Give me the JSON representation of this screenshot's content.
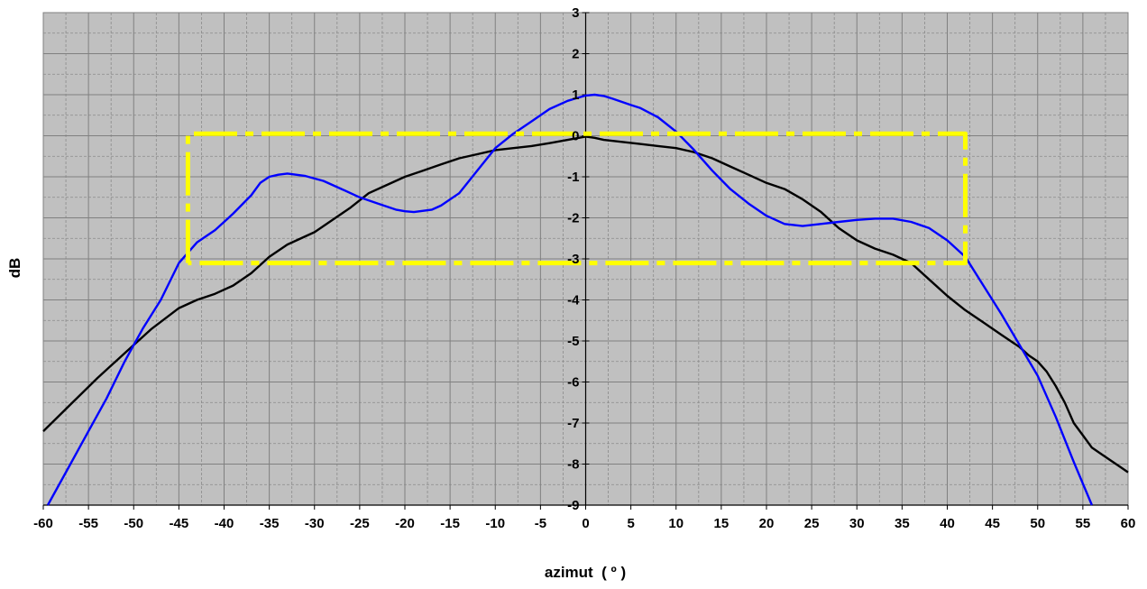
{
  "chart_data": {
    "type": "line",
    "title": "",
    "xlabel": "azimut  ( º )",
    "ylabel": "dB",
    "xlim": [
      -60,
      60
    ],
    "ylim": [
      -9,
      3
    ],
    "x_ticks": [
      -60,
      -55,
      -50,
      -45,
      -40,
      -35,
      -30,
      -25,
      -20,
      -15,
      -10,
      -5,
      0,
      5,
      10,
      15,
      20,
      25,
      30,
      35,
      40,
      45,
      50,
      55,
      60
    ],
    "y_ticks": [
      -9,
      -8,
      -7,
      -6,
      -5,
      -4,
      -3,
      -2,
      -1,
      0,
      1,
      2,
      3
    ],
    "x_minor_grid_step": 2.5,
    "y_minor_grid_step": 0.5,
    "grid": true,
    "plot_background": "#c0c0c0",
    "legend": "none",
    "series": [
      {
        "color": "#000000",
        "points": [
          [
            -60,
            -7.2
          ],
          [
            -57,
            -6.55
          ],
          [
            -54,
            -5.9
          ],
          [
            -51,
            -5.3
          ],
          [
            -48,
            -4.7
          ],
          [
            -45,
            -4.2
          ],
          [
            -43,
            -4.0
          ],
          [
            -41,
            -3.85
          ],
          [
            -39,
            -3.65
          ],
          [
            -37,
            -3.35
          ],
          [
            -35,
            -2.95
          ],
          [
            -33,
            -2.65
          ],
          [
            -30,
            -2.35
          ],
          [
            -28,
            -2.05
          ],
          [
            -26,
            -1.75
          ],
          [
            -24,
            -1.4
          ],
          [
            -22,
            -1.2
          ],
          [
            -20,
            -1.0
          ],
          [
            -18,
            -0.85
          ],
          [
            -16,
            -0.7
          ],
          [
            -14,
            -0.55
          ],
          [
            -12,
            -0.45
          ],
          [
            -10,
            -0.35
          ],
          [
            -8,
            -0.3
          ],
          [
            -6,
            -0.25
          ],
          [
            -4,
            -0.18
          ],
          [
            -2,
            -0.1
          ],
          [
            0,
            -0.02
          ],
          [
            1,
            -0.05
          ],
          [
            2,
            -0.1
          ],
          [
            4,
            -0.15
          ],
          [
            6,
            -0.2
          ],
          [
            8,
            -0.25
          ],
          [
            10,
            -0.3
          ],
          [
            12,
            -0.4
          ],
          [
            14,
            -0.55
          ],
          [
            16,
            -0.75
          ],
          [
            18,
            -0.95
          ],
          [
            20,
            -1.15
          ],
          [
            22,
            -1.3
          ],
          [
            24,
            -1.55
          ],
          [
            26,
            -1.85
          ],
          [
            28,
            -2.25
          ],
          [
            30,
            -2.55
          ],
          [
            32,
            -2.75
          ],
          [
            34,
            -2.9
          ],
          [
            36,
            -3.1
          ],
          [
            38,
            -3.5
          ],
          [
            40,
            -3.9
          ],
          [
            42,
            -4.25
          ],
          [
            44,
            -4.55
          ],
          [
            46,
            -4.85
          ],
          [
            48,
            -5.15
          ],
          [
            49,
            -5.35
          ],
          [
            50,
            -5.5
          ],
          [
            51,
            -5.75
          ],
          [
            52,
            -6.1
          ],
          [
            53,
            -6.5
          ],
          [
            54,
            -7.0
          ],
          [
            55,
            -7.3
          ],
          [
            56,
            -7.6
          ],
          [
            57,
            -7.75
          ],
          [
            58,
            -7.9
          ],
          [
            59,
            -8.05
          ],
          [
            60,
            -8.2
          ]
        ]
      },
      {
        "color": "#0000ff",
        "points": [
          [
            -59.5,
            -9.0
          ],
          [
            -57,
            -8.0
          ],
          [
            -55,
            -7.2
          ],
          [
            -53,
            -6.4
          ],
          [
            -51,
            -5.5
          ],
          [
            -49,
            -4.7
          ],
          [
            -47,
            -4.0
          ],
          [
            -45,
            -3.1
          ],
          [
            -43,
            -2.6
          ],
          [
            -41,
            -2.3
          ],
          [
            -39,
            -1.9
          ],
          [
            -37,
            -1.45
          ],
          [
            -36,
            -1.15
          ],
          [
            -35,
            -1.0
          ],
          [
            -34,
            -0.95
          ],
          [
            -33,
            -0.92
          ],
          [
            -31,
            -0.98
          ],
          [
            -29,
            -1.1
          ],
          [
            -27,
            -1.3
          ],
          [
            -25,
            -1.5
          ],
          [
            -23,
            -1.65
          ],
          [
            -21,
            -1.8
          ],
          [
            -20,
            -1.84
          ],
          [
            -19,
            -1.86
          ],
          [
            -17,
            -1.8
          ],
          [
            -16,
            -1.7
          ],
          [
            -14,
            -1.4
          ],
          [
            -12,
            -0.85
          ],
          [
            -10,
            -0.3
          ],
          [
            -8,
            0.05
          ],
          [
            -6,
            0.35
          ],
          [
            -4,
            0.65
          ],
          [
            -2,
            0.85
          ],
          [
            0,
            0.98
          ],
          [
            1,
            1.0
          ],
          [
            2,
            0.97
          ],
          [
            3,
            0.9
          ],
          [
            5,
            0.75
          ],
          [
            6,
            0.68
          ],
          [
            8,
            0.45
          ],
          [
            10,
            0.1
          ],
          [
            12,
            -0.35
          ],
          [
            14,
            -0.85
          ],
          [
            16,
            -1.3
          ],
          [
            18,
            -1.65
          ],
          [
            20,
            -1.95
          ],
          [
            22,
            -2.15
          ],
          [
            24,
            -2.2
          ],
          [
            26,
            -2.15
          ],
          [
            28,
            -2.1
          ],
          [
            30,
            -2.05
          ],
          [
            32,
            -2.02
          ],
          [
            34,
            -2.02
          ],
          [
            36,
            -2.1
          ],
          [
            38,
            -2.25
          ],
          [
            40,
            -2.55
          ],
          [
            42,
            -2.95
          ],
          [
            44,
            -3.65
          ],
          [
            46,
            -4.35
          ],
          [
            48,
            -5.1
          ],
          [
            50,
            -5.85
          ],
          [
            52,
            -6.85
          ],
          [
            54,
            -7.95
          ],
          [
            56,
            -9.0
          ]
        ]
      },
      {
        "color": "#ffff00",
        "style": "dash-dot",
        "points": [
          [
            -44,
            -3.1
          ],
          [
            -44,
            0.05
          ],
          [
            42,
            0.05
          ],
          [
            42,
            -3.1
          ],
          [
            -44,
            -3.1
          ]
        ]
      }
    ]
  }
}
